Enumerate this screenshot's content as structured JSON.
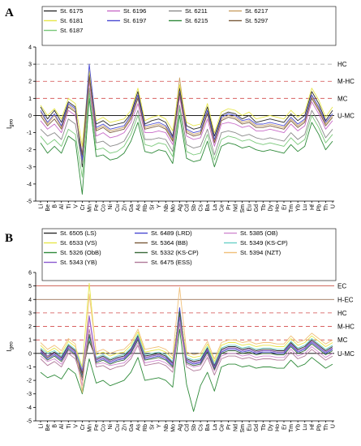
{
  "elements": [
    "Li",
    "Be",
    "B",
    "Al",
    "Ti",
    "V",
    "Cr",
    "Mn",
    "Fe",
    "Co",
    "Ni",
    "Cu",
    "Zn",
    "Ga",
    "As",
    "Rb",
    "Sr",
    "Y",
    "Nb",
    "Mo",
    "Ag",
    "Cd",
    "Sb",
    "Cs",
    "Ba",
    "La",
    "Ce",
    "Pr",
    "Nd",
    "Sm",
    "Eu",
    "Gd",
    "Tb",
    "Dy",
    "Ho",
    "Er",
    "Tm",
    "Yb",
    "Lu",
    "Hf",
    "Pb",
    "Th",
    "U"
  ],
  "chart_data": [
    {
      "panel": "A",
      "type": "line",
      "ylabel": "Igeo",
      "ylim": [
        -5,
        4
      ],
      "yticks": [
        -5,
        -4,
        -3,
        -2,
        -1,
        0,
        1,
        2,
        3,
        4
      ],
      "legend_columns": 4,
      "levels": [
        {
          "label": "HC",
          "y": 3,
          "color": "#a0a0a0"
        },
        {
          "label": "M-HC",
          "y": 2,
          "color": "#d24a4a"
        },
        {
          "label": "MC",
          "y": 1,
          "color": "#d24a4a"
        },
        {
          "label": "U-MC",
          "y": 0,
          "color": "#000000"
        }
      ],
      "series": [
        {
          "name": "St. 6175",
          "color": "#2b2b2b",
          "values": [
            0.5,
            -0.2,
            0.3,
            -0.4,
            0.8,
            0.5,
            -3.0,
            2.4,
            -0.5,
            -0.3,
            -0.6,
            -0.5,
            -0.4,
            0.1,
            1.4,
            -0.5,
            -0.3,
            -0.2,
            -0.4,
            -1.2,
            1.6,
            -0.6,
            -0.8,
            -0.7,
            0.5,
            -1.2,
            0.0,
            0.2,
            0.1,
            -0.2,
            0.0,
            -0.4,
            -0.3,
            -0.2,
            -0.3,
            -0.4,
            0.1,
            -0.3,
            0.0,
            1.4,
            0.7,
            -0.3,
            0.3
          ]
        },
        {
          "name": "St. 6196",
          "color": "#c86bc8",
          "values": [
            -0.3,
            -0.8,
            -0.5,
            -1.0,
            0.3,
            0.0,
            -2.2,
            2.0,
            -1.2,
            -1.0,
            -1.3,
            -1.2,
            -1.0,
            -0.4,
            0.7,
            -1.0,
            -1.0,
            -0.9,
            -1.0,
            -1.7,
            1.1,
            -1.2,
            -1.4,
            -1.3,
            -0.2,
            -1.8,
            -0.5,
            -0.4,
            -0.5,
            -0.7,
            -0.6,
            -0.9,
            -0.9,
            -0.8,
            -0.9,
            -1.0,
            -0.5,
            -0.9,
            -0.6,
            0.8,
            0.1,
            -0.8,
            -0.3
          ]
        },
        {
          "name": "St. 6211",
          "color": "#8a8a8a",
          "values": [
            -0.8,
            -1.2,
            -1.0,
            -1.4,
            -0.2,
            -0.5,
            -2.8,
            1.6,
            -1.6,
            -1.5,
            -1.8,
            -1.7,
            -1.5,
            -0.8,
            0.3,
            -1.4,
            -1.4,
            -1.3,
            -1.4,
            -2.1,
            0.6,
            -1.7,
            -1.9,
            -1.8,
            -0.8,
            -2.3,
            -1.0,
            -0.9,
            -1.0,
            -1.2,
            -1.1,
            -1.3,
            -1.4,
            -1.3,
            -1.4,
            -1.5,
            -1.0,
            -1.4,
            -1.1,
            0.3,
            -0.4,
            -1.3,
            -0.8
          ]
        },
        {
          "name": "St. 6217",
          "color": "#c9a064",
          "values": [
            0.2,
            -0.5,
            0.0,
            -0.7,
            0.6,
            0.3,
            -2.5,
            2.2,
            -0.8,
            -0.6,
            -0.9,
            -0.8,
            -0.7,
            -0.1,
            1.1,
            -0.7,
            -0.6,
            -0.5,
            -0.7,
            -1.4,
            2.2,
            -0.9,
            -1.1,
            -1.0,
            0.2,
            -1.5,
            -0.2,
            0.0,
            -0.1,
            -0.4,
            -0.3,
            -0.6,
            -0.6,
            -0.5,
            -0.6,
            -0.7,
            -0.2,
            -0.6,
            -0.3,
            1.1,
            0.4,
            -0.5,
            0.0
          ]
        },
        {
          "name": "St. 6181",
          "color": "#e6e64a",
          "values": [
            0.6,
            0.0,
            0.4,
            -0.2,
            1.0,
            0.7,
            -1.8,
            2.6,
            -0.3,
            -0.1,
            -0.4,
            -0.3,
            -0.2,
            0.3,
            1.6,
            -0.3,
            -0.1,
            0.0,
            -0.2,
            -0.9,
            1.8,
            -0.4,
            -0.6,
            -0.5,
            0.7,
            -1.0,
            0.2,
            0.4,
            0.3,
            0.0,
            0.2,
            -0.2,
            -0.1,
            0.0,
            -0.1,
            -0.2,
            0.3,
            -0.1,
            0.2,
            1.6,
            0.9,
            -0.1,
            0.5
          ]
        },
        {
          "name": "St. 6197",
          "color": "#4a4ad2",
          "values": [
            0.3,
            -0.4,
            0.1,
            -0.6,
            0.7,
            0.4,
            -2.6,
            3.0,
            -0.7,
            -0.5,
            -0.8,
            -0.7,
            -0.6,
            0.0,
            1.2,
            -0.6,
            -0.5,
            -0.4,
            -0.6,
            -1.3,
            1.4,
            -0.8,
            -1.0,
            -0.9,
            0.3,
            -1.4,
            -0.1,
            0.1,
            0.0,
            -0.3,
            -0.2,
            -0.5,
            -0.5,
            -0.4,
            -0.5,
            -0.6,
            -0.1,
            -0.5,
            -0.2,
            1.2,
            0.5,
            -0.4,
            0.1
          ]
        },
        {
          "name": "St. 6215",
          "color": "#2f8a3a",
          "values": [
            -1.6,
            -2.2,
            -1.8,
            -2.2,
            -1.2,
            -1.5,
            -4.6,
            1.0,
            -2.4,
            -2.3,
            -2.6,
            -2.5,
            -2.2,
            -1.5,
            -0.4,
            -2.1,
            -2.2,
            -2.0,
            -2.1,
            -2.8,
            0.0,
            -2.5,
            -2.7,
            -2.6,
            -1.5,
            -3.0,
            -1.8,
            -1.6,
            -1.7,
            -1.9,
            -1.8,
            -2.0,
            -2.1,
            -2.0,
            -2.1,
            -2.2,
            -1.7,
            -2.1,
            -1.8,
            -0.4,
            -1.1,
            -2.0,
            -1.5
          ]
        },
        {
          "name": "St. 5297",
          "color": "#7a5a3a",
          "values": [
            0.0,
            -0.6,
            -0.2,
            -0.8,
            0.5,
            0.2,
            -2.3,
            2.3,
            -0.9,
            -0.7,
            -1.0,
            -0.9,
            -0.8,
            -0.2,
            1.0,
            -0.8,
            -0.7,
            -0.6,
            -0.8,
            -1.5,
            1.3,
            -1.0,
            -1.2,
            -1.1,
            0.1,
            -1.6,
            -0.3,
            -0.1,
            -0.2,
            -0.5,
            -0.4,
            -0.7,
            -0.7,
            -0.6,
            -0.7,
            -0.8,
            -0.3,
            -0.7,
            -0.4,
            1.0,
            0.3,
            -0.6,
            -0.1
          ]
        },
        {
          "name": "St. 6187",
          "color": "#7ac87a",
          "values": [
            -1.2,
            -1.7,
            -1.4,
            -1.8,
            -0.8,
            -1.1,
            -3.6,
            1.3,
            -2.0,
            -1.9,
            -2.2,
            -2.1,
            -1.8,
            -1.1,
            0.0,
            -1.7,
            -1.8,
            -1.6,
            -1.7,
            -2.4,
            0.4,
            -2.1,
            -2.3,
            -2.2,
            -1.1,
            -2.6,
            -1.4,
            -1.2,
            -1.3,
            -1.5,
            -1.4,
            -1.6,
            -1.7,
            -1.6,
            -1.7,
            -1.8,
            -1.3,
            -1.7,
            -1.4,
            0.0,
            -0.7,
            -1.6,
            -1.1
          ]
        }
      ]
    },
    {
      "panel": "B",
      "type": "line",
      "ylabel": "Igeo",
      "ylim": [
        -5,
        6
      ],
      "yticks": [
        -5,
        -4,
        -3,
        -2,
        -1,
        0,
        1,
        2,
        3,
        4,
        5,
        6
      ],
      "legend_columns": 3,
      "levels": [
        {
          "label": "EC",
          "y": 5,
          "color": "#c0392b"
        },
        {
          "label": "H-EC",
          "y": 4,
          "color": "#8a5a3a"
        },
        {
          "label": "HC",
          "y": 3,
          "color": "#d24a4a"
        },
        {
          "label": "M-HC",
          "y": 2,
          "color": "#d24a4a"
        },
        {
          "label": "MC",
          "y": 1,
          "color": "#d24a4a"
        },
        {
          "label": "U-MC",
          "y": 0,
          "color": "#000000"
        }
      ],
      "series": [
        {
          "name": "St. 6505 (LS)",
          "color": "#2b2b2b",
          "values": [
            0.3,
            -0.2,
            0.1,
            -0.3,
            0.6,
            0.2,
            -1.4,
            0.9,
            -0.4,
            -0.2,
            -0.5,
            -0.3,
            -0.2,
            0.3,
            1.3,
            -0.2,
            -0.1,
            0.0,
            -0.2,
            -0.7,
            3.2,
            -0.4,
            -0.6,
            -0.5,
            0.4,
            -0.9,
            0.3,
            0.5,
            0.5,
            0.3,
            0.4,
            0.2,
            0.3,
            0.3,
            0.2,
            0.2,
            0.8,
            0.3,
            0.5,
            1.0,
            0.6,
            0.2,
            0.5
          ]
        },
        {
          "name": "St. 6489 (LRD)",
          "color": "#4a4ad2",
          "values": [
            0.1,
            -0.4,
            -0.1,
            -0.5,
            0.4,
            0.0,
            -1.6,
            1.2,
            -0.6,
            -0.4,
            -0.7,
            -0.5,
            -0.4,
            0.1,
            1.1,
            -0.4,
            -0.3,
            -0.2,
            -0.4,
            -0.9,
            3.4,
            -0.6,
            -0.8,
            -0.7,
            0.2,
            -1.1,
            0.1,
            0.3,
            0.3,
            0.1,
            0.2,
            0.0,
            0.1,
            0.1,
            0.0,
            0.0,
            0.6,
            0.1,
            0.3,
            0.8,
            0.4,
            0.0,
            0.3
          ]
        },
        {
          "name": "St. 5385 (OB)",
          "color": "#d08ad0",
          "values": [
            -0.2,
            -0.6,
            -0.4,
            -0.8,
            0.2,
            -0.2,
            -2.4,
            2.6,
            -0.8,
            -0.7,
            -0.9,
            -0.8,
            -0.7,
            -0.2,
            0.8,
            -0.7,
            -0.6,
            -0.5,
            -0.7,
            -1.1,
            2.4,
            -0.8,
            -1.0,
            -0.9,
            -0.1,
            -1.3,
            -0.2,
            0.0,
            0.0,
            -0.2,
            -0.1,
            -0.3,
            -0.2,
            -0.2,
            -0.3,
            -0.3,
            0.3,
            -0.2,
            0.0,
            0.5,
            0.1,
            -0.3,
            0.0
          ]
        },
        {
          "name": "St. 6533 (VS)",
          "color": "#e6e64a",
          "values": [
            0.6,
            0.1,
            0.4,
            0.0,
            0.9,
            0.5,
            -1.0,
            5.2,
            -0.1,
            0.1,
            -0.2,
            0.0,
            0.1,
            0.6,
            1.6,
            0.1,
            0.2,
            0.3,
            0.1,
            -0.4,
            3.0,
            -0.1,
            -0.3,
            -0.2,
            0.7,
            -0.6,
            0.6,
            0.8,
            0.8,
            0.6,
            0.7,
            0.5,
            0.6,
            0.6,
            0.5,
            0.5,
            1.1,
            0.6,
            0.8,
            1.3,
            0.9,
            0.5,
            0.8
          ]
        },
        {
          "name": "St. 5364 (BB)",
          "color": "#7a5a3a",
          "values": [
            0.2,
            -0.3,
            0.0,
            -0.4,
            0.5,
            0.1,
            -1.5,
            1.0,
            -0.5,
            -0.3,
            -0.6,
            -0.4,
            -0.3,
            0.2,
            1.2,
            -0.3,
            -0.2,
            -0.1,
            -0.3,
            -0.8,
            2.8,
            -0.5,
            -0.7,
            -0.6,
            0.3,
            -1.0,
            0.2,
            0.4,
            0.4,
            0.2,
            0.3,
            0.1,
            0.2,
            0.2,
            0.1,
            0.1,
            0.7,
            0.2,
            0.4,
            0.9,
            0.5,
            0.1,
            0.4
          ]
        },
        {
          "name": "St. 5349 (KS-CP)",
          "color": "#6ad0c8",
          "values": [
            0.4,
            0.0,
            0.2,
            -0.2,
            0.7,
            0.3,
            -1.2,
            1.1,
            -0.3,
            -0.1,
            -0.4,
            -0.2,
            -0.1,
            0.4,
            1.4,
            -0.1,
            0.0,
            0.1,
            -0.1,
            -0.6,
            2.6,
            -0.3,
            -0.5,
            -0.4,
            0.5,
            -0.8,
            0.4,
            0.6,
            0.6,
            0.4,
            0.5,
            0.3,
            0.4,
            0.4,
            0.3,
            0.3,
            0.9,
            0.4,
            0.6,
            1.1,
            0.7,
            0.3,
            0.6
          ]
        },
        {
          "name": "St. 5326 (ObB)",
          "color": "#2f8a3a",
          "values": [
            -1.4,
            -1.8,
            -1.6,
            -1.9,
            -1.1,
            -1.5,
            -3.0,
            -0.4,
            -2.2,
            -2.0,
            -2.4,
            -2.2,
            -2.0,
            -1.4,
            -0.3,
            -2.0,
            -1.9,
            -1.8,
            -2.0,
            -2.5,
            1.8,
            -2.3,
            -4.3,
            -2.4,
            -1.4,
            -2.8,
            -1.0,
            -0.8,
            -0.8,
            -1.0,
            -0.9,
            -1.1,
            -1.0,
            -1.0,
            -1.1,
            -1.1,
            -0.5,
            -1.0,
            -0.8,
            -0.3,
            -0.7,
            -1.1,
            -0.8
          ]
        },
        {
          "name": "St. 5332 (KS-CP)",
          "color": "#3a6a3a",
          "values": [
            0.0,
            -0.5,
            -0.2,
            -0.6,
            0.3,
            -0.1,
            -1.8,
            1.4,
            -0.7,
            -0.5,
            -0.8,
            -0.6,
            -0.5,
            0.0,
            1.0,
            -0.5,
            -0.4,
            -0.3,
            -0.5,
            -1.0,
            3.1,
            -0.7,
            -0.9,
            -0.8,
            0.1,
            -1.2,
            0.0,
            0.2,
            0.2,
            0.0,
            0.1,
            -0.1,
            0.0,
            0.0,
            -0.1,
            -0.1,
            0.5,
            0.0,
            0.2,
            0.7,
            0.3,
            -0.1,
            0.2
          ]
        },
        {
          "name": "St. 5394 (NZT)",
          "color": "#f0c07a",
          "values": [
            0.8,
            0.3,
            0.6,
            0.2,
            1.1,
            0.7,
            -2.9,
            4.4,
            0.1,
            0.3,
            0.0,
            0.2,
            0.3,
            0.8,
            1.8,
            0.3,
            0.4,
            0.5,
            0.3,
            -0.2,
            4.9,
            0.1,
            -0.1,
            0.0,
            0.9,
            -0.4,
            0.8,
            1.0,
            1.0,
            0.8,
            0.9,
            0.7,
            0.8,
            0.8,
            0.7,
            0.7,
            1.3,
            0.8,
            1.0,
            1.5,
            1.1,
            0.7,
            1.0
          ]
        },
        {
          "name": "St. 5343 (YB)",
          "color": "#8a5ad0",
          "values": [
            0.2,
            -0.2,
            0.0,
            -0.4,
            0.5,
            0.1,
            -1.3,
            2.8,
            -0.5,
            -0.3,
            -0.6,
            -0.4,
            -0.3,
            0.2,
            1.2,
            -0.3,
            -0.2,
            -0.1,
            -0.3,
            -0.8,
            2.7,
            -0.5,
            -0.7,
            -0.6,
            0.3,
            -1.0,
            0.2,
            0.4,
            0.4,
            0.2,
            0.3,
            0.1,
            0.2,
            0.2,
            0.1,
            0.1,
            0.7,
            0.2,
            0.4,
            0.9,
            0.5,
            0.1,
            0.4
          ]
        },
        {
          "name": "St. 6475 (ESS)",
          "color": "#b07a9a",
          "values": [
            -0.4,
            -0.9,
            -0.6,
            -1.0,
            0.0,
            -0.4,
            -2.0,
            1.8,
            -1.0,
            -0.9,
            -1.2,
            -1.0,
            -0.9,
            -0.4,
            0.6,
            -0.9,
            -0.8,
            -0.7,
            -0.9,
            -1.4,
            2.2,
            -1.0,
            -1.3,
            -1.2,
            -0.3,
            -1.6,
            -0.4,
            -0.2,
            -0.2,
            -0.4,
            -0.3,
            -0.5,
            -0.4,
            -0.4,
            -0.5,
            -0.5,
            0.1,
            -0.4,
            -0.2,
            0.3,
            -0.1,
            -0.5,
            -0.2
          ]
        }
      ]
    }
  ]
}
